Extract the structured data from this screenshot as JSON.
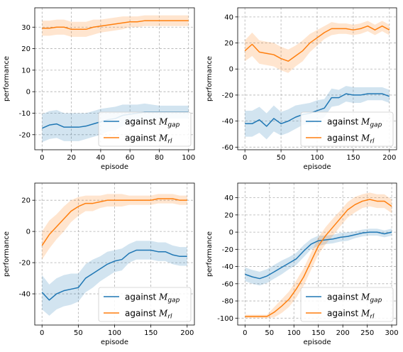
{
  "colors": {
    "blue": "#1f77b4",
    "orange": "#ff7f0e",
    "grid": "#b0b0b0"
  },
  "chart_data": [
    {
      "type": "line",
      "xlabel": "episode",
      "ylabel": "performance",
      "xlim": [
        -5,
        104
      ],
      "ylim": [
        -27,
        39
      ],
      "xticks": [
        0,
        20,
        40,
        60,
        80,
        100
      ],
      "yticks": [
        -20,
        -10,
        0,
        10,
        20,
        30
      ],
      "grid": true,
      "legend_position": "lower-right",
      "series": [
        {
          "name": "against M_gap",
          "legend_main": "against ",
          "legend_sym": "M",
          "legend_sub": "gap",
          "color": "#1f77b4",
          "x": [
            0,
            5,
            10,
            15,
            20,
            25,
            30,
            35,
            40,
            45,
            50,
            55,
            60,
            65,
            70,
            75,
            80,
            85,
            90,
            95,
            100
          ],
          "y": [
            -17,
            -15.5,
            -15,
            -16.5,
            -16.5,
            -16.5,
            -16,
            -15,
            -14,
            -13,
            -12.5,
            -11,
            -10.5,
            -10,
            -9.5,
            -9.5,
            -9.5,
            -9.5,
            -9.5,
            -9.5,
            -9.5
          ],
          "band": [
            6.5,
            6.5,
            6.5,
            6.5,
            6.5,
            6.5,
            6,
            6,
            6,
            5.5,
            5.5,
            5,
            4.5,
            4,
            4,
            3.5,
            3,
            3,
            3,
            3,
            3
          ]
        },
        {
          "name": "against M_rl",
          "legend_main": "against ",
          "legend_sym": "M",
          "legend_sub": "rl",
          "color": "#ff7f0e",
          "x": [
            0,
            5,
            10,
            15,
            20,
            25,
            30,
            35,
            40,
            45,
            50,
            55,
            60,
            65,
            70,
            75,
            80,
            85,
            90,
            95,
            100
          ],
          "y": [
            29.5,
            29.5,
            30,
            30,
            29,
            29,
            29,
            30,
            30.5,
            31,
            31.5,
            32,
            32.5,
            32.5,
            33,
            33,
            33,
            33,
            33,
            33,
            33
          ],
          "band": [
            3.5,
            3.5,
            3.5,
            3.5,
            3.5,
            3.5,
            3.5,
            3.5,
            3,
            3,
            3,
            3,
            2.5,
            2.5,
            2.5,
            2.5,
            2.5,
            2.5,
            2.5,
            2.5,
            2.5
          ]
        }
      ]
    },
    {
      "type": "line",
      "xlabel": "episode",
      "ylabel": "performance",
      "xlim": [
        -10,
        210
      ],
      "ylim": [
        -62,
        47
      ],
      "xticks": [
        0,
        50,
        100,
        150,
        200
      ],
      "yticks": [
        -60,
        -40,
        -20,
        0,
        20,
        40
      ],
      "grid": true,
      "legend_position": "lower-right",
      "series": [
        {
          "name": "against M_gap",
          "legend_main": "against ",
          "legend_sym": "M",
          "legend_sub": "gap",
          "color": "#1f77b4",
          "x": [
            0,
            10,
            20,
            30,
            40,
            50,
            60,
            70,
            80,
            90,
            100,
            110,
            120,
            130,
            140,
            150,
            160,
            170,
            180,
            190,
            200
          ],
          "y": [
            -42,
            -42,
            -39,
            -44,
            -38,
            -42,
            -40,
            -37,
            -35,
            -34,
            -32,
            -30,
            -22,
            -22,
            -19,
            -20,
            -20,
            -19,
            -19,
            -19,
            -21
          ],
          "band": [
            10,
            10,
            10,
            10,
            10,
            9,
            9,
            9,
            8,
            8,
            8,
            7,
            7,
            6,
            6,
            6,
            6,
            5,
            5,
            5,
            5
          ]
        },
        {
          "name": "against M_rl",
          "legend_main": "against ",
          "legend_sym": "M",
          "legend_sub": "rl",
          "color": "#ff7f0e",
          "x": [
            0,
            10,
            20,
            30,
            40,
            50,
            60,
            70,
            80,
            90,
            100,
            110,
            120,
            130,
            140,
            150,
            160,
            170,
            180,
            190,
            200
          ],
          "y": [
            14,
            19,
            13,
            12,
            11,
            8,
            6,
            10,
            14,
            20,
            24,
            28,
            31,
            31,
            31,
            30,
            31,
            33,
            30,
            33,
            30
          ],
          "band": [
            8,
            9,
            9,
            9,
            9,
            9,
            9,
            8,
            8,
            7,
            6,
            5,
            5,
            4,
            4,
            4,
            4,
            4,
            4,
            4,
            4
          ]
        }
      ]
    },
    {
      "type": "line",
      "xlabel": "episode",
      "ylabel": "performance",
      "xlim": [
        -10,
        210
      ],
      "ylim": [
        -60,
        31
      ],
      "xticks": [
        0,
        50,
        100,
        150,
        200
      ],
      "yticks": [
        -40,
        -20,
        0,
        20
      ],
      "grid": true,
      "legend_position": "lower-right",
      "series": [
        {
          "name": "against M_gap",
          "legend_main": "against ",
          "legend_sym": "M",
          "legend_sub": "gap",
          "color": "#1f77b4",
          "x": [
            0,
            10,
            20,
            30,
            40,
            50,
            60,
            70,
            80,
            90,
            100,
            110,
            120,
            130,
            140,
            150,
            160,
            170,
            180,
            190,
            200
          ],
          "y": [
            -39,
            -44,
            -40,
            -38,
            -37,
            -36,
            -30,
            -27,
            -24,
            -21,
            -19,
            -18,
            -14,
            -12,
            -12,
            -12,
            -13,
            -13,
            -15,
            -16,
            -16
          ],
          "band": [
            11,
            10,
            10,
            10,
            10,
            9,
            9,
            9,
            8,
            8,
            7,
            7,
            6,
            6,
            6,
            6,
            6,
            6,
            6,
            6,
            6
          ]
        },
        {
          "name": "against M_rl",
          "legend_main": "against ",
          "legend_sym": "M",
          "legend_sub": "rl",
          "color": "#ff7f0e",
          "x": [
            0,
            10,
            20,
            30,
            40,
            50,
            60,
            70,
            80,
            90,
            100,
            110,
            120,
            130,
            140,
            150,
            160,
            170,
            180,
            190,
            200
          ],
          "y": [
            -9,
            -2,
            3,
            8,
            13,
            16,
            18,
            18,
            19,
            20,
            20,
            20,
            20,
            20,
            20,
            20,
            21,
            21,
            21,
            20,
            20
          ],
          "band": [
            9,
            9,
            8,
            8,
            7,
            6,
            5,
            5,
            4,
            4,
            4,
            4,
            3,
            3,
            3,
            3,
            3,
            3,
            3,
            3,
            3
          ]
        }
      ]
    },
    {
      "type": "line",
      "xlabel": "episode",
      "ylabel": "performance",
      "xlim": [
        -15,
        310
      ],
      "ylim": [
        -108,
        57
      ],
      "xticks": [
        0,
        50,
        100,
        150,
        200,
        250,
        300
      ],
      "yticks": [
        -100,
        -80,
        -60,
        -40,
        -20,
        0,
        20,
        40
      ],
      "grid": true,
      "legend_position": "lower-right",
      "series": [
        {
          "name": "against M_gap",
          "legend_main": "against ",
          "legend_sym": "M",
          "legend_sub": "gap",
          "color": "#1f77b4",
          "x": [
            0,
            15,
            30,
            45,
            60,
            75,
            90,
            105,
            120,
            135,
            150,
            165,
            180,
            195,
            210,
            225,
            240,
            255,
            270,
            285,
            300
          ],
          "y": [
            -49,
            -52,
            -54,
            -51,
            -46,
            -41,
            -36,
            -31,
            -22,
            -14,
            -10,
            -9,
            -8,
            -6,
            -5,
            -3,
            -1,
            0,
            0,
            -2,
            0
          ],
          "band": [
            8,
            8,
            8,
            8,
            8,
            8,
            7,
            7,
            7,
            6,
            6,
            5,
            5,
            5,
            5,
            4,
            4,
            4,
            4,
            4,
            4
          ]
        },
        {
          "name": "against M_rl",
          "legend_main": "against ",
          "legend_sym": "M",
          "legend_sub": "rl",
          "color": "#ff7f0e",
          "x": [
            0,
            15,
            30,
            45,
            60,
            75,
            90,
            105,
            120,
            135,
            150,
            165,
            180,
            195,
            210,
            225,
            240,
            255,
            270,
            285,
            300
          ],
          "y": [
            -98,
            -98,
            -98,
            -98,
            -93,
            -86,
            -78,
            -66,
            -52,
            -34,
            -16,
            -4,
            6,
            16,
            26,
            32,
            36,
            38,
            36,
            36,
            30
          ],
          "band": [
            2,
            2,
            2,
            2,
            6,
            8,
            9,
            10,
            10,
            10,
            10,
            10,
            10,
            9,
            9,
            9,
            8,
            8,
            8,
            8,
            8
          ]
        }
      ]
    }
  ]
}
